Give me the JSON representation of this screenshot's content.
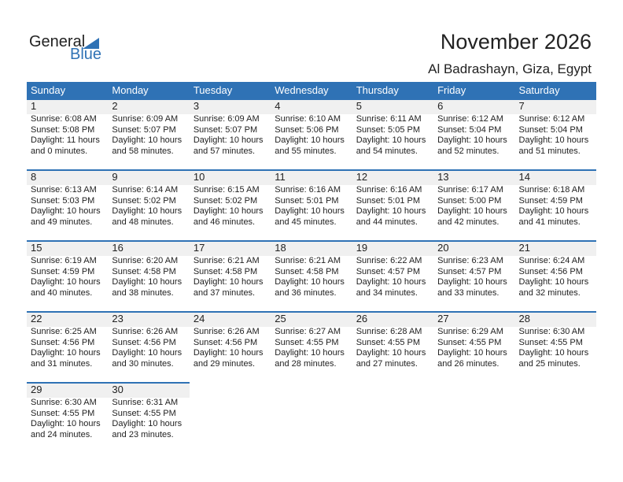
{
  "logo": {
    "line1": "General",
    "line2": "Blue"
  },
  "header": {
    "title": "November 2026",
    "location": "Al Badrashayn, Giza, Egypt"
  },
  "colors": {
    "accent": "#2f72b5",
    "day_band": "#f0f0f0"
  },
  "weekdays": [
    "Sunday",
    "Monday",
    "Tuesday",
    "Wednesday",
    "Thursday",
    "Friday",
    "Saturday"
  ],
  "weeks": [
    [
      {
        "day": "1",
        "sunrise": "Sunrise: 6:08 AM",
        "sunset": "Sunset: 5:08 PM",
        "daylight": "Daylight: 11 hours",
        "minutes": "and 0 minutes."
      },
      {
        "day": "2",
        "sunrise": "Sunrise: 6:09 AM",
        "sunset": "Sunset: 5:07 PM",
        "daylight": "Daylight: 10 hours",
        "minutes": "and 58 minutes."
      },
      {
        "day": "3",
        "sunrise": "Sunrise: 6:09 AM",
        "sunset": "Sunset: 5:07 PM",
        "daylight": "Daylight: 10 hours",
        "minutes": "and 57 minutes."
      },
      {
        "day": "4",
        "sunrise": "Sunrise: 6:10 AM",
        "sunset": "Sunset: 5:06 PM",
        "daylight": "Daylight: 10 hours",
        "minutes": "and 55 minutes."
      },
      {
        "day": "5",
        "sunrise": "Sunrise: 6:11 AM",
        "sunset": "Sunset: 5:05 PM",
        "daylight": "Daylight: 10 hours",
        "minutes": "and 54 minutes."
      },
      {
        "day": "6",
        "sunrise": "Sunrise: 6:12 AM",
        "sunset": "Sunset: 5:04 PM",
        "daylight": "Daylight: 10 hours",
        "minutes": "and 52 minutes."
      },
      {
        "day": "7",
        "sunrise": "Sunrise: 6:12 AM",
        "sunset": "Sunset: 5:04 PM",
        "daylight": "Daylight: 10 hours",
        "minutes": "and 51 minutes."
      }
    ],
    [
      {
        "day": "8",
        "sunrise": "Sunrise: 6:13 AM",
        "sunset": "Sunset: 5:03 PM",
        "daylight": "Daylight: 10 hours",
        "minutes": "and 49 minutes."
      },
      {
        "day": "9",
        "sunrise": "Sunrise: 6:14 AM",
        "sunset": "Sunset: 5:02 PM",
        "daylight": "Daylight: 10 hours",
        "minutes": "and 48 minutes."
      },
      {
        "day": "10",
        "sunrise": "Sunrise: 6:15 AM",
        "sunset": "Sunset: 5:02 PM",
        "daylight": "Daylight: 10 hours",
        "minutes": "and 46 minutes."
      },
      {
        "day": "11",
        "sunrise": "Sunrise: 6:16 AM",
        "sunset": "Sunset: 5:01 PM",
        "daylight": "Daylight: 10 hours",
        "minutes": "and 45 minutes."
      },
      {
        "day": "12",
        "sunrise": "Sunrise: 6:16 AM",
        "sunset": "Sunset: 5:01 PM",
        "daylight": "Daylight: 10 hours",
        "minutes": "and 44 minutes."
      },
      {
        "day": "13",
        "sunrise": "Sunrise: 6:17 AM",
        "sunset": "Sunset: 5:00 PM",
        "daylight": "Daylight: 10 hours",
        "minutes": "and 42 minutes."
      },
      {
        "day": "14",
        "sunrise": "Sunrise: 6:18 AM",
        "sunset": "Sunset: 4:59 PM",
        "daylight": "Daylight: 10 hours",
        "minutes": "and 41 minutes."
      }
    ],
    [
      {
        "day": "15",
        "sunrise": "Sunrise: 6:19 AM",
        "sunset": "Sunset: 4:59 PM",
        "daylight": "Daylight: 10 hours",
        "minutes": "and 40 minutes."
      },
      {
        "day": "16",
        "sunrise": "Sunrise: 6:20 AM",
        "sunset": "Sunset: 4:58 PM",
        "daylight": "Daylight: 10 hours",
        "minutes": "and 38 minutes."
      },
      {
        "day": "17",
        "sunrise": "Sunrise: 6:21 AM",
        "sunset": "Sunset: 4:58 PM",
        "daylight": "Daylight: 10 hours",
        "minutes": "and 37 minutes."
      },
      {
        "day": "18",
        "sunrise": "Sunrise: 6:21 AM",
        "sunset": "Sunset: 4:58 PM",
        "daylight": "Daylight: 10 hours",
        "minutes": "and 36 minutes."
      },
      {
        "day": "19",
        "sunrise": "Sunrise: 6:22 AM",
        "sunset": "Sunset: 4:57 PM",
        "daylight": "Daylight: 10 hours",
        "minutes": "and 34 minutes."
      },
      {
        "day": "20",
        "sunrise": "Sunrise: 6:23 AM",
        "sunset": "Sunset: 4:57 PM",
        "daylight": "Daylight: 10 hours",
        "minutes": "and 33 minutes."
      },
      {
        "day": "21",
        "sunrise": "Sunrise: 6:24 AM",
        "sunset": "Sunset: 4:56 PM",
        "daylight": "Daylight: 10 hours",
        "minutes": "and 32 minutes."
      }
    ],
    [
      {
        "day": "22",
        "sunrise": "Sunrise: 6:25 AM",
        "sunset": "Sunset: 4:56 PM",
        "daylight": "Daylight: 10 hours",
        "minutes": "and 31 minutes."
      },
      {
        "day": "23",
        "sunrise": "Sunrise: 6:26 AM",
        "sunset": "Sunset: 4:56 PM",
        "daylight": "Daylight: 10 hours",
        "minutes": "and 30 minutes."
      },
      {
        "day": "24",
        "sunrise": "Sunrise: 6:26 AM",
        "sunset": "Sunset: 4:56 PM",
        "daylight": "Daylight: 10 hours",
        "minutes": "and 29 minutes."
      },
      {
        "day": "25",
        "sunrise": "Sunrise: 6:27 AM",
        "sunset": "Sunset: 4:55 PM",
        "daylight": "Daylight: 10 hours",
        "minutes": "and 28 minutes."
      },
      {
        "day": "26",
        "sunrise": "Sunrise: 6:28 AM",
        "sunset": "Sunset: 4:55 PM",
        "daylight": "Daylight: 10 hours",
        "minutes": "and 27 minutes."
      },
      {
        "day": "27",
        "sunrise": "Sunrise: 6:29 AM",
        "sunset": "Sunset: 4:55 PM",
        "daylight": "Daylight: 10 hours",
        "minutes": "and 26 minutes."
      },
      {
        "day": "28",
        "sunrise": "Sunrise: 6:30 AM",
        "sunset": "Sunset: 4:55 PM",
        "daylight": "Daylight: 10 hours",
        "minutes": "and 25 minutes."
      }
    ],
    [
      {
        "day": "29",
        "sunrise": "Sunrise: 6:30 AM",
        "sunset": "Sunset: 4:55 PM",
        "daylight": "Daylight: 10 hours",
        "minutes": "and 24 minutes."
      },
      {
        "day": "30",
        "sunrise": "Sunrise: 6:31 AM",
        "sunset": "Sunset: 4:55 PM",
        "daylight": "Daylight: 10 hours",
        "minutes": "and 23 minutes."
      },
      null,
      null,
      null,
      null,
      null
    ]
  ]
}
